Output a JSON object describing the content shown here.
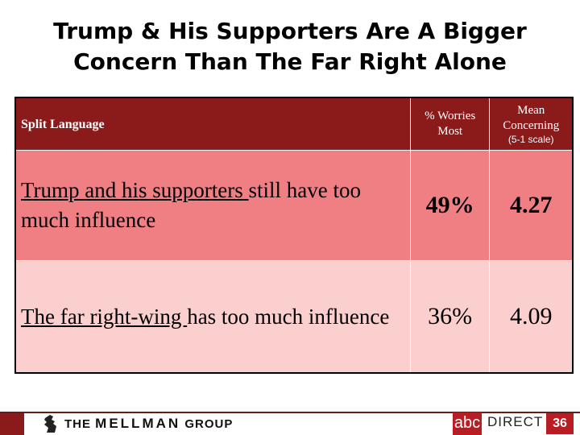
{
  "title": {
    "line1": "Trump & His Supporters Are A Bigger",
    "line2": "Concern Than The Far Right Alone"
  },
  "table": {
    "header": {
      "label": "Split Language",
      "col1_line1": "% Worries",
      "col1_line2": "Most",
      "col2_line1": "Mean",
      "col2_line2": "Concerning",
      "col2_sub": "(5-1 scale)"
    },
    "rows": [
      {
        "underlined": "Trump and his supporters ",
        "rest": "still have too much influence",
        "pct": "49%",
        "mean": "4.27"
      },
      {
        "underlined": "The far right-wing ",
        "rest": "has too much influence",
        "pct": "36%",
        "mean": "4.09"
      }
    ]
  },
  "footer": {
    "logo_the": "THE",
    "logo_mellman": "MELLMAN",
    "logo_group": "GROUP",
    "abc": "abc",
    "direct": "DIRECT",
    "page_number": "36"
  }
}
